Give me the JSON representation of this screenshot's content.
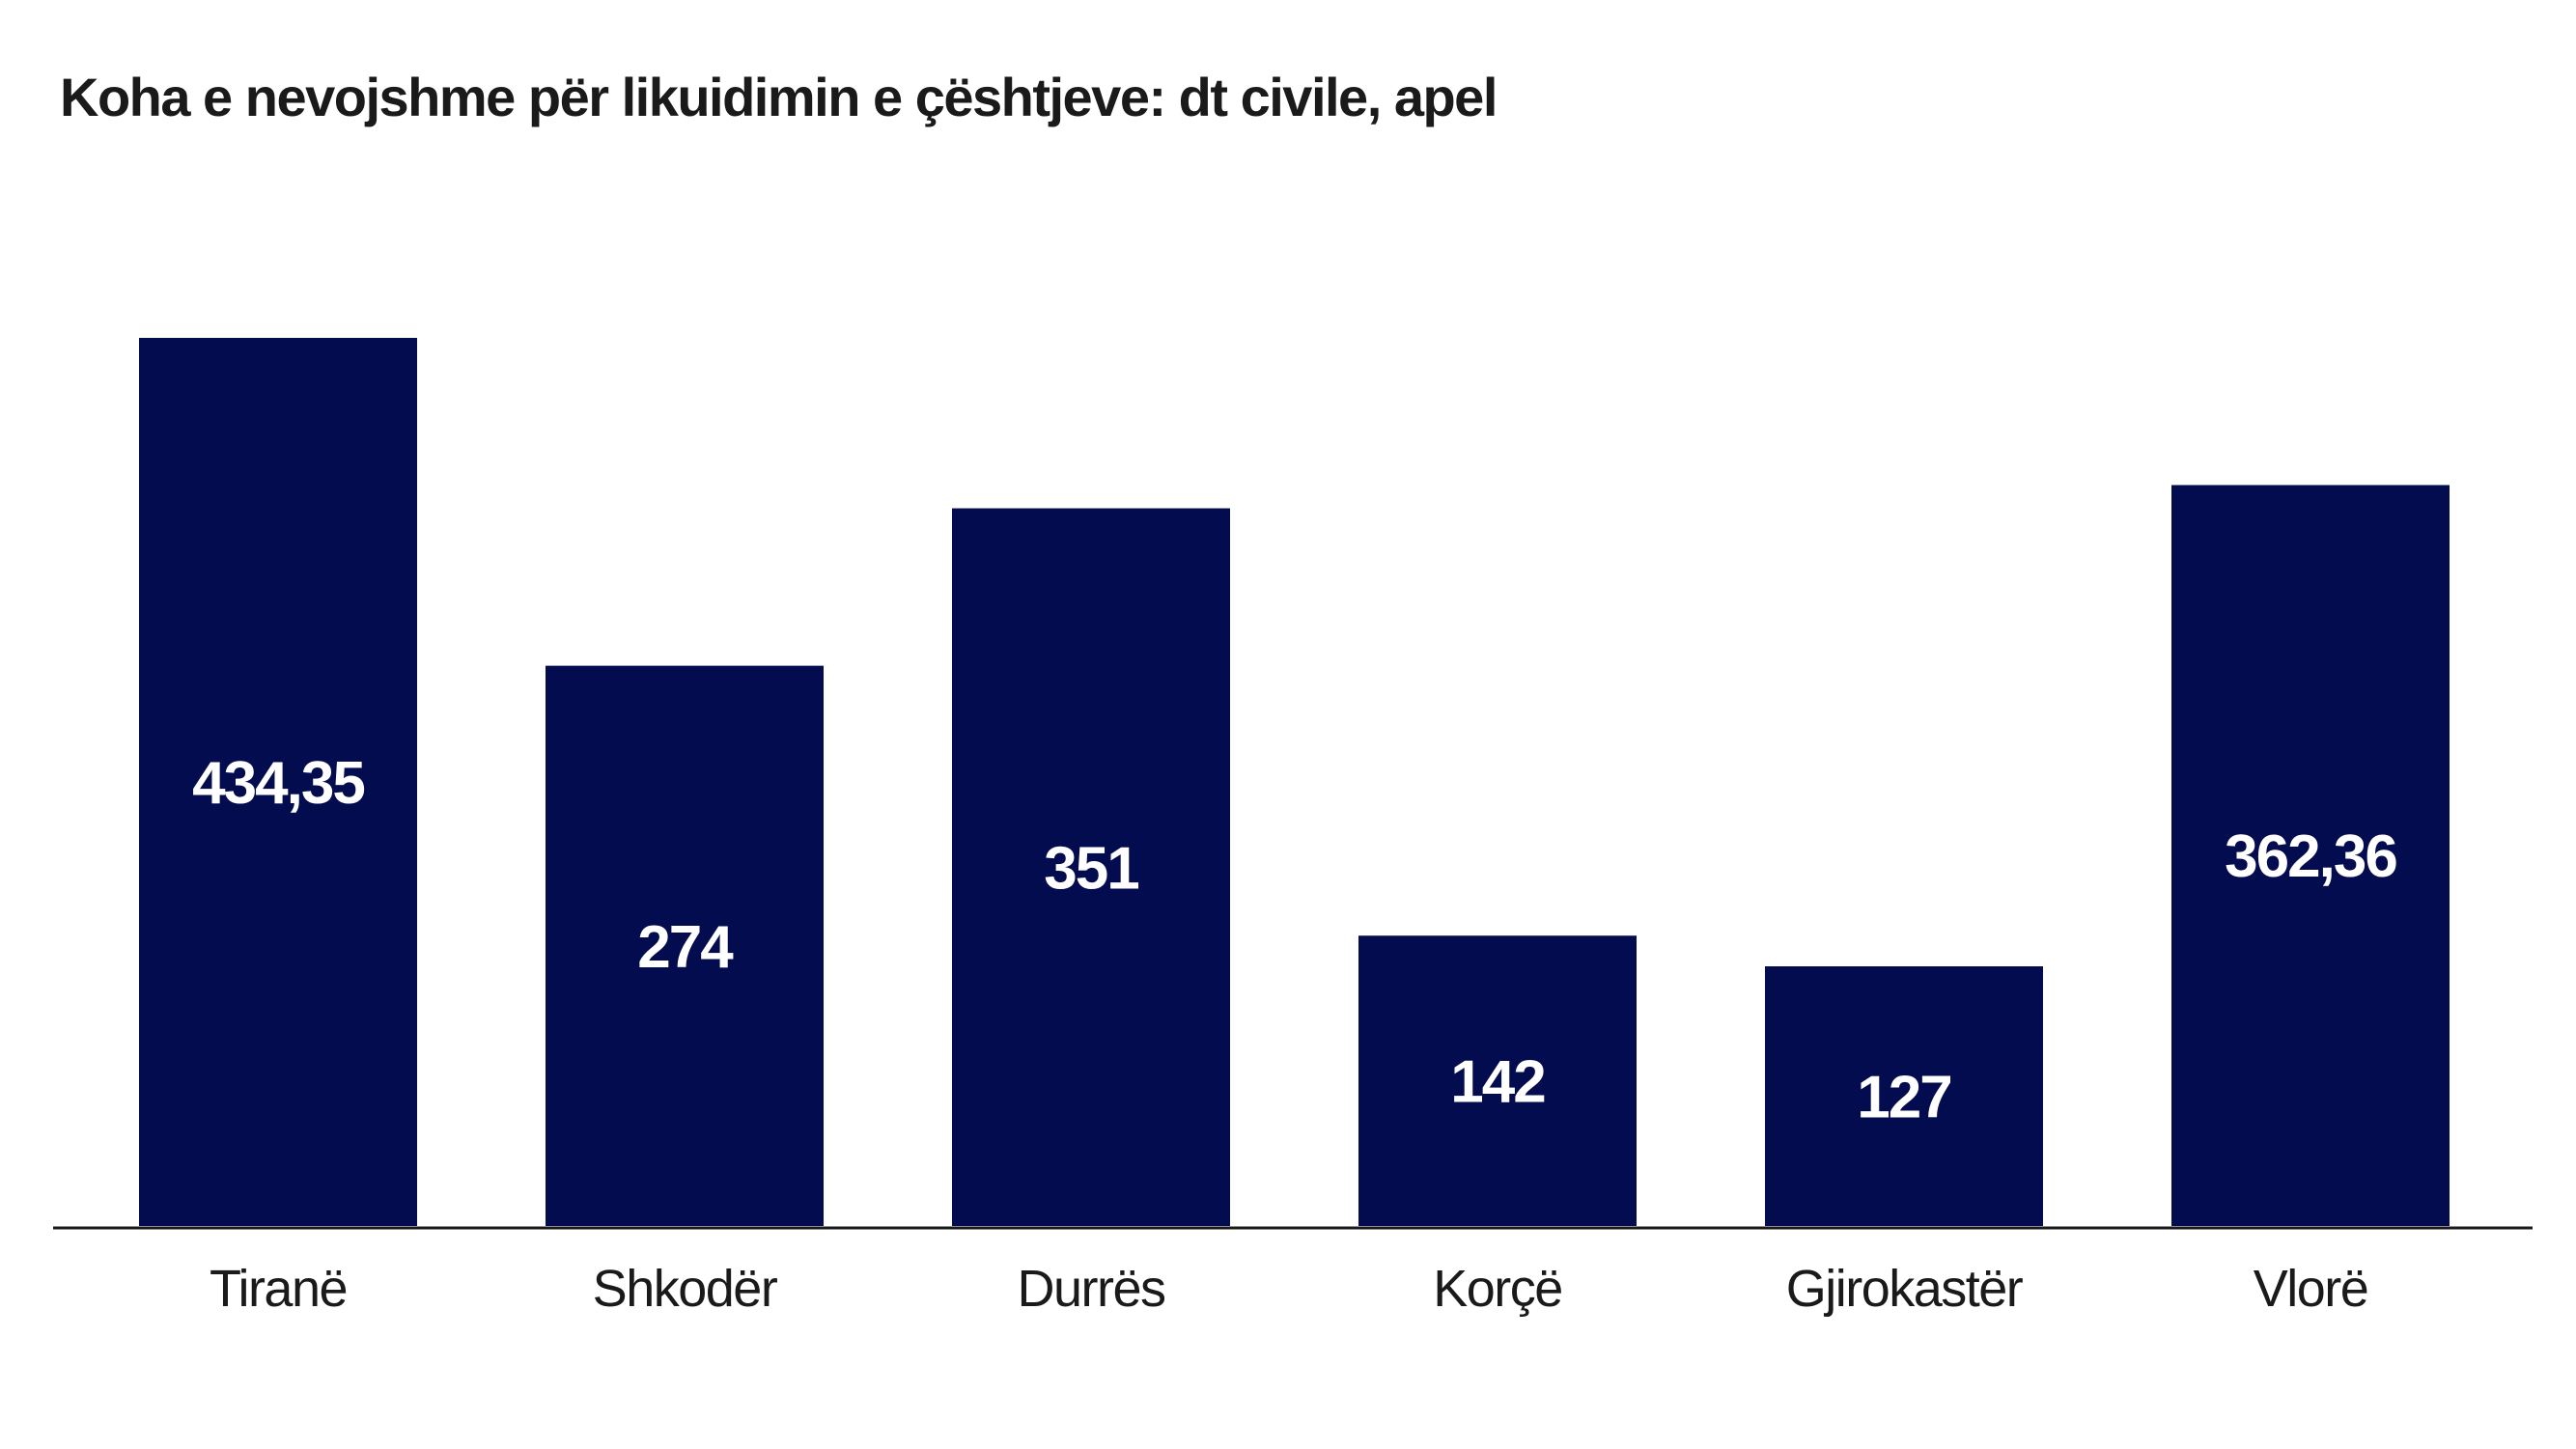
{
  "chart_data": {
    "type": "bar",
    "title": "Koha e nevojshme për likuidimin e çështjeve: dt civile, apel",
    "xlabel": "",
    "ylabel": "",
    "categories": [
      "Tiranë",
      "Shkodër",
      "Durrës",
      "Korçë",
      "Gjirokastër",
      "Vlorë"
    ],
    "values": [
      434.35,
      274,
      351,
      142,
      127,
      362.36
    ],
    "value_labels": [
      "434,35",
      "274",
      "351",
      "142",
      "127",
      "362,36"
    ],
    "ylim": [
      0,
      434.35
    ],
    "grid": false,
    "legend": "none",
    "colors": {
      "bar": "#020c4e",
      "axis": "#1a1a1a",
      "bar_label": "#ffffff",
      "text": "#1a1a1a"
    }
  }
}
